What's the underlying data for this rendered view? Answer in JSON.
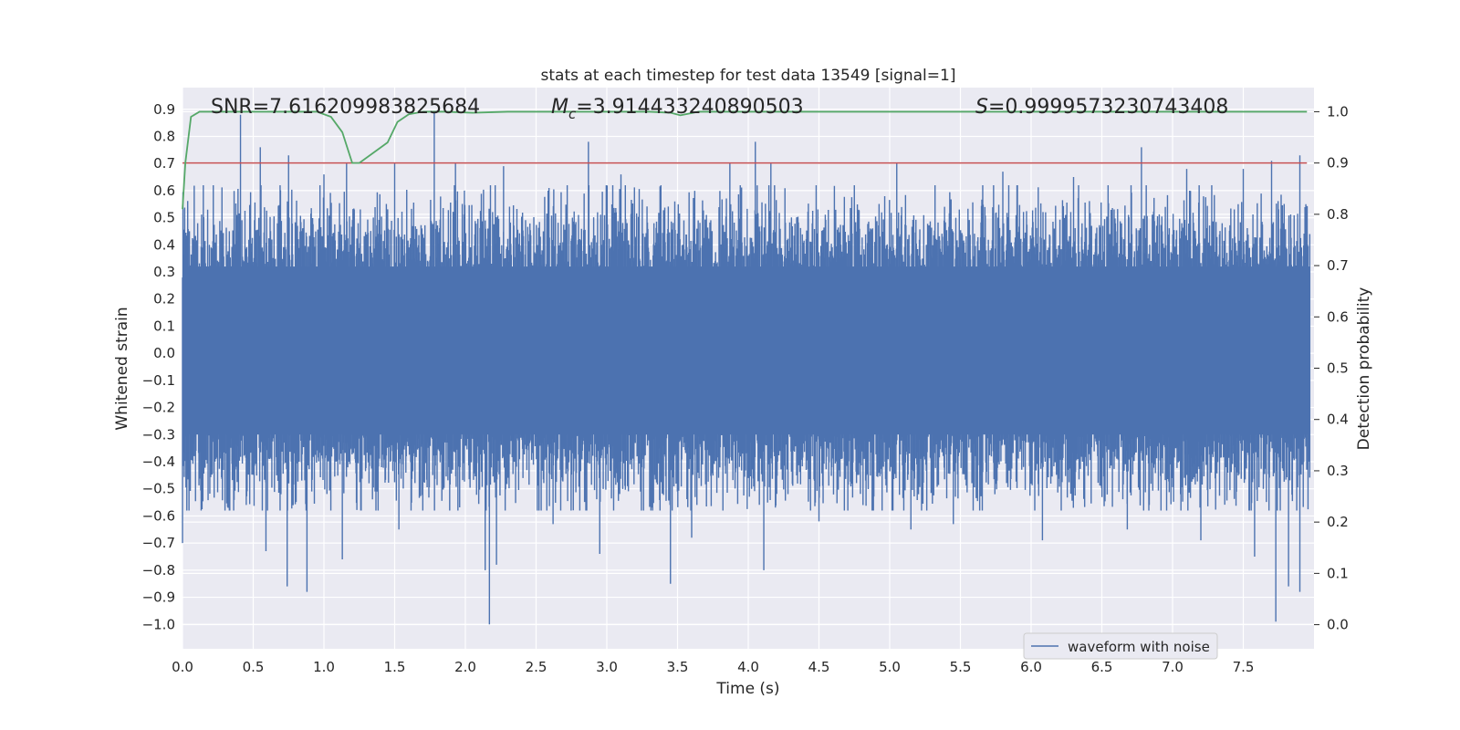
{
  "chart_data": {
    "type": "line",
    "title": "stats at each timestep for test data 13549 [signal=1]",
    "xlabel": "Time (s)",
    "ylabel_left": "Whitened strain",
    "ylabel_right": "Detection probability",
    "xlim": [
      0,
      8
    ],
    "ylim_left": [
      -1.09,
      0.98
    ],
    "ylim_right": [
      -0.047,
      1.047
    ],
    "x_ticks": [
      0.0,
      0.5,
      1.0,
      1.5,
      2.0,
      2.5,
      3.0,
      3.5,
      4.0,
      4.5,
      5.0,
      5.5,
      6.0,
      6.5,
      7.0,
      7.5
    ],
    "x_tick_labels": [
      "0.0",
      "0.5",
      "1.0",
      "1.5",
      "2.0",
      "2.5",
      "3.0",
      "3.5",
      "4.0",
      "4.5",
      "5.0",
      "5.5",
      "6.0",
      "6.5",
      "7.0",
      "7.5"
    ],
    "y_left_ticks": [
      0.9,
      0.8,
      0.7,
      0.6,
      0.5,
      0.4,
      0.3,
      0.2,
      0.1,
      0.0,
      -0.1,
      -0.2,
      -0.3,
      -0.4,
      -0.5,
      -0.6,
      -0.7,
      -0.8,
      -0.9,
      -1.0
    ],
    "y_left_tick_labels": [
      "0.9",
      "0.8",
      "0.7",
      "0.6",
      "0.5",
      "0.4",
      "0.3",
      "0.2",
      "0.1",
      "0.0",
      "−0.1",
      "−0.2",
      "−0.3",
      "−0.4",
      "−0.5",
      "−0.6",
      "−0.7",
      "−0.8",
      "−0.9",
      "−1.0"
    ],
    "y_right_ticks": [
      1.0,
      0.9,
      0.8,
      0.7,
      0.6,
      0.5,
      0.4,
      0.3,
      0.2,
      0.1,
      0.0
    ],
    "y_right_tick_labels": [
      "1.0",
      "0.9",
      "0.8",
      "0.7",
      "0.6",
      "0.5",
      "0.4",
      "0.3",
      "0.2",
      "0.1",
      "0.0"
    ],
    "annotations": {
      "snr": "SNR=7.616209983825684",
      "mc_symbol": "M",
      "mc_sub": "c",
      "mc_value": "=3.914433240890503",
      "s_symbol": "S",
      "s_value": "=0.9999573230743408"
    },
    "threshold": {
      "value": 0.9,
      "axis": "right",
      "color": "#c44e52"
    },
    "series": [
      {
        "name": "waveform with noise",
        "axis": "left",
        "color": "#4c72b0",
        "style": "dense noisy strain, sampled visually",
        "envelope_typical": [
          -0.45,
          0.45
        ],
        "upper_spikes": [
          [
            0.41,
            0.88
          ],
          [
            0.55,
            0.76
          ],
          [
            0.75,
            0.73
          ],
          [
            1.0,
            0.66
          ],
          [
            1.16,
            0.7
          ],
          [
            1.5,
            0.7
          ],
          [
            1.78,
            0.89
          ],
          [
            1.93,
            0.7
          ],
          [
            2.27,
            0.69
          ],
          [
            2.87,
            0.78
          ],
          [
            3.1,
            0.66
          ],
          [
            3.87,
            0.7
          ],
          [
            4.05,
            0.78
          ],
          [
            4.16,
            0.7
          ],
          [
            5.05,
            0.7
          ],
          [
            5.8,
            0.67
          ],
          [
            6.3,
            0.65
          ],
          [
            6.78,
            0.76
          ],
          [
            7.1,
            0.68
          ],
          [
            7.5,
            0.68
          ],
          [
            7.7,
            0.71
          ],
          [
            7.9,
            0.73
          ]
        ],
        "lower_spikes": [
          [
            0.0,
            -0.7
          ],
          [
            0.59,
            -0.73
          ],
          [
            0.74,
            -0.86
          ],
          [
            0.88,
            -0.88
          ],
          [
            1.13,
            -0.76
          ],
          [
            1.53,
            -0.65
          ],
          [
            2.14,
            -0.8
          ],
          [
            2.17,
            -1.0
          ],
          [
            2.22,
            -0.78
          ],
          [
            2.62,
            -0.63
          ],
          [
            2.95,
            -0.74
          ],
          [
            3.45,
            -0.85
          ],
          [
            3.6,
            -0.68
          ],
          [
            4.11,
            -0.8
          ],
          [
            4.5,
            -0.62
          ],
          [
            5.15,
            -0.65
          ],
          [
            5.45,
            -0.63
          ],
          [
            6.08,
            -0.69
          ],
          [
            6.68,
            -0.65
          ],
          [
            7.2,
            -0.69
          ],
          [
            7.58,
            -0.75
          ],
          [
            7.73,
            -0.99
          ],
          [
            7.82,
            -0.86
          ],
          [
            7.9,
            -0.88
          ]
        ]
      },
      {
        "name": "detection probability",
        "axis": "right",
        "color": "#55a868",
        "x": [
          0.0,
          0.02,
          0.06,
          0.12,
          0.2,
          0.4,
          0.8,
          0.95,
          1.05,
          1.13,
          1.2,
          1.25,
          1.35,
          1.45,
          1.52,
          1.6,
          1.7,
          1.85,
          2.05,
          2.3,
          2.6,
          3.0,
          3.3,
          3.45,
          3.52,
          3.65,
          4.0,
          5.0,
          6.0,
          7.0,
          7.95
        ],
        "y": [
          0.81,
          0.9,
          0.99,
          1.0,
          1.0,
          1.0,
          1.0,
          1.0,
          0.99,
          0.96,
          0.9,
          0.9,
          0.92,
          0.94,
          0.98,
          0.995,
          1.0,
          1.0,
          0.998,
          1.0,
          1.0,
          1.0,
          1.0,
          0.998,
          0.993,
          1.0,
          1.0,
          1.0,
          1.0,
          1.0,
          1.0
        ]
      }
    ],
    "legend": {
      "entries": [
        "waveform with noise"
      ],
      "placement": "bottom-right"
    }
  }
}
